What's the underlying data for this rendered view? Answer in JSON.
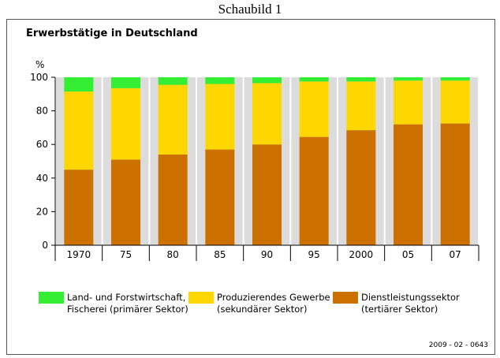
{
  "page": {
    "caption": "Schaubild 1",
    "code": "2009 - 02 - 0643"
  },
  "chart_data": {
    "type": "bar",
    "stacked": true,
    "title": "Erwerbstätige in Deutschland",
    "ylabel": "%",
    "xlabel": "",
    "ylim": [
      0,
      100
    ],
    "yticks": [
      0,
      20,
      40,
      60,
      80,
      100
    ],
    "grid": false,
    "legend_position": "bottom",
    "categories": [
      "1970",
      "75",
      "80",
      "85",
      "90",
      "95",
      "2000",
      "05",
      "07"
    ],
    "series": [
      {
        "key": "tertiary",
        "name": "Dienstleistungssektor\n(tertiärer Sektor)",
        "color": "#cc7000",
        "values": [
          45,
          51,
          54,
          57,
          60,
          64.5,
          68.5,
          72,
          72.5
        ]
      },
      {
        "key": "secondary",
        "name": "Produzierendes Gewerbe\n(sekundärer Sektor)",
        "color": "#ffd700",
        "values": [
          46.5,
          42.5,
          41.5,
          39,
          36.5,
          33,
          29,
          26,
          25.5
        ]
      },
      {
        "key": "primary",
        "name": "Land- und Forstwirtschaft,\nFischerei (primärer Sektor)",
        "color": "#33ee33",
        "values": [
          8.5,
          6.5,
          4.5,
          4,
          3.5,
          2.5,
          2.5,
          2,
          2
        ]
      }
    ],
    "column_background": "#dcdcdc"
  }
}
